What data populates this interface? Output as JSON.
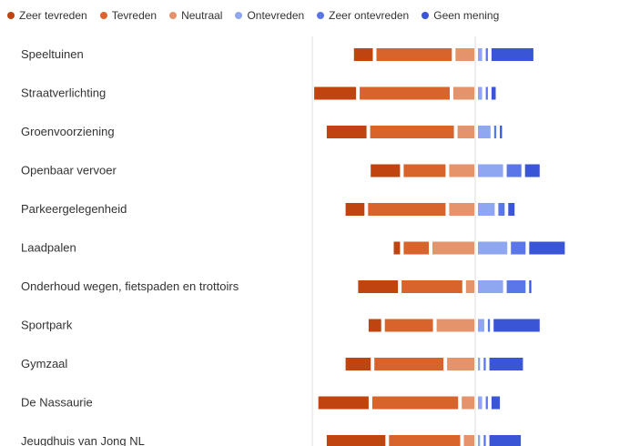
{
  "chart_data": {
    "type": "bar",
    "subtype": "diverging-stacked-horizontal",
    "legend_position": "top",
    "grid": false,
    "series": [
      {
        "name": "Zeer tevreden",
        "color": "#c0440f"
      },
      {
        "name": "Tevreden",
        "color": "#d9642b"
      },
      {
        "name": "Neutraal",
        "color": "#e4936b"
      },
      {
        "name": "Ontevreden",
        "color": "#8fa6f0"
      },
      {
        "name": "Zeer ontevreden",
        "color": "#5a76e8"
      },
      {
        "name": "Geen mening",
        "color": "#3a55d6"
      }
    ],
    "categories": [
      "Speeltuinen",
      "Straatverlichting",
      "Groenvoorziening",
      "Openbaar vervoer",
      "Parkeergelegenheid",
      "Laadpalen",
      "Onderhoud wegen, fietspaden en trottoirs",
      "Sportpark",
      "Gymzaal",
      "De Nassaurie",
      "Jeugdhuis van Jong NL"
    ],
    "values": {
      "Zeer tevreden": [
        9,
        20,
        19,
        14,
        9,
        3,
        19,
        6,
        12,
        24,
        28
      ],
      "Tevreden": [
        36,
        43,
        40,
        20,
        37,
        12,
        29,
        23,
        33,
        41,
        34
      ],
      "Neutraal": [
        9,
        10,
        8,
        12,
        12,
        20,
        4,
        18,
        13,
        6,
        5
      ],
      "Ontevreden": [
        2,
        2,
        6,
        12,
        8,
        14,
        12,
        3,
        1,
        2,
        1
      ],
      "Zeer ontevreden": [
        1,
        1,
        1,
        7,
        3,
        7,
        9,
        1,
        1,
        1,
        1
      ],
      "Geen mening": [
        20,
        2,
        1,
        7,
        3,
        17,
        1,
        22,
        16,
        4,
        15
      ]
    }
  }
}
